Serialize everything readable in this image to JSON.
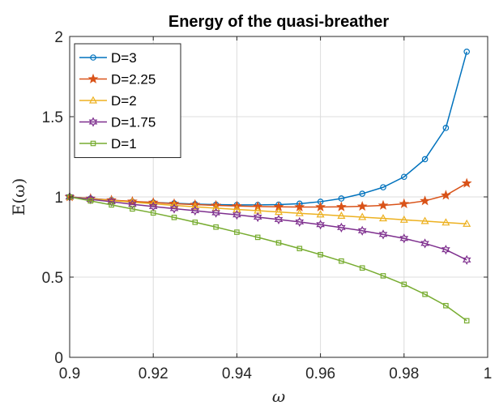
{
  "chart_data": {
    "type": "line",
    "title": "Energy of the quasi-breather",
    "xlabel": "ω",
    "ylabel": "E(ω)",
    "xlim": [
      0.9,
      1.0
    ],
    "ylim": [
      0,
      2
    ],
    "xticks": [
      0.9,
      0.92,
      0.94,
      0.96,
      0.98,
      1.0
    ],
    "xtick_labels": [
      "0.9",
      "0.92",
      "0.94",
      "0.96",
      "0.98",
      "1"
    ],
    "yticks": [
      0,
      0.5,
      1,
      1.5,
      2
    ],
    "ytick_labels": [
      "0",
      "0.5",
      "1",
      "1.5",
      "2"
    ],
    "grid": true,
    "legend_position": "top-left",
    "x": [
      0.9,
      0.905,
      0.91,
      0.915,
      0.92,
      0.925,
      0.93,
      0.935,
      0.94,
      0.945,
      0.95,
      0.955,
      0.96,
      0.965,
      0.97,
      0.975,
      0.98,
      0.985,
      0.99,
      0.995
    ],
    "series": [
      {
        "name": "D=3",
        "color": "#0072BD",
        "marker": "circle",
        "values": [
          1.0,
          0.99,
          0.98,
          0.97,
          0.965,
          0.96,
          0.955,
          0.952,
          0.95,
          0.95,
          0.952,
          0.958,
          0.97,
          0.99,
          1.02,
          1.06,
          1.125,
          1.235,
          1.43,
          1.905
        ]
      },
      {
        "name": "D=2.25",
        "color": "#D95319",
        "marker": "star",
        "values": [
          1.0,
          0.99,
          0.98,
          0.972,
          0.965,
          0.958,
          0.952,
          0.947,
          0.943,
          0.94,
          0.938,
          0.937,
          0.937,
          0.938,
          0.941,
          0.947,
          0.957,
          0.975,
          1.01,
          1.085
        ]
      },
      {
        "name": "D=2",
        "color": "#EDB120",
        "marker": "triangle",
        "values": [
          1.0,
          0.988,
          0.977,
          0.967,
          0.957,
          0.947,
          0.938,
          0.93,
          0.922,
          0.914,
          0.906,
          0.898,
          0.89,
          0.882,
          0.874,
          0.866,
          0.857,
          0.849,
          0.84,
          0.832
        ]
      },
      {
        "name": "D=1.75",
        "color": "#7E2F8E",
        "marker": "hexagram",
        "values": [
          1.0,
          0.985,
          0.97,
          0.954,
          0.94,
          0.927,
          0.914,
          0.901,
          0.888,
          0.874,
          0.859,
          0.844,
          0.827,
          0.809,
          0.789,
          0.766,
          0.741,
          0.71,
          0.671,
          0.607
        ]
      },
      {
        "name": "D=1",
        "color": "#77AC30",
        "marker": "square",
        "values": [
          1.0,
          0.975,
          0.95,
          0.925,
          0.9,
          0.872,
          0.842,
          0.812,
          0.78,
          0.748,
          0.714,
          0.678,
          0.64,
          0.6,
          0.557,
          0.508,
          0.455,
          0.393,
          0.322,
          0.228
        ]
      }
    ]
  }
}
